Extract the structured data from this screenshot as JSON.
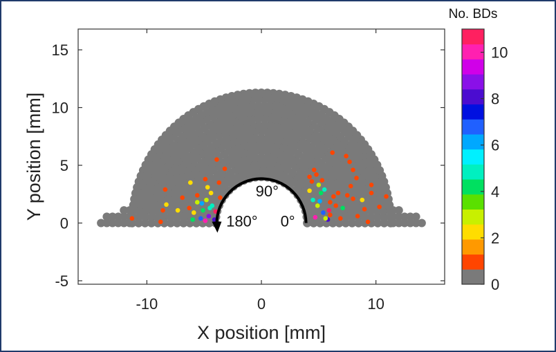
{
  "chart_data": {
    "type": "scatter",
    "title": "",
    "xlabel": "X position [mm]",
    "ylabel": "Y position [mm]",
    "xlim": [
      -16,
      16
    ],
    "ylim": [
      -5.3,
      16.8
    ],
    "xticks": [
      -10,
      0,
      10
    ],
    "xtick_labels": [
      "-10",
      "0",
      "10"
    ],
    "yticks": [
      -5,
      0,
      5,
      10,
      15
    ],
    "ytick_labels": [
      "-5",
      "0",
      "5",
      "10",
      "15"
    ],
    "grid": false,
    "geometry": {
      "shape": "half-annulus",
      "inner_radius_mm": 4.0,
      "outer_radius_mm": 11.5,
      "x_half_width_mm": 14,
      "base_color": "#7a7a7a"
    },
    "angle_annotation": {
      "labels": [
        "0°",
        "90°",
        "180°"
      ],
      "direction": "counter-clockwise"
    },
    "colorbar": {
      "title": "No. BDs",
      "min": 0,
      "max": 11,
      "ticks": [
        0,
        2,
        4,
        6,
        8,
        10
      ],
      "tick_labels": [
        "0",
        "2",
        "4",
        "6",
        "8",
        "10"
      ],
      "colors": [
        "#7a7a7a",
        "#ff4500",
        "#ff9900",
        "#ffdd00",
        "#c8f000",
        "#5ae000",
        "#00e060",
        "#00f0c0",
        "#00f0ff",
        "#00a8ff",
        "#2060ff",
        "#0010e0",
        "#4b0cd0",
        "#8a10e8",
        "#d000e8",
        "#ff20b0",
        "#ff2060"
      ]
    },
    "points": [
      {
        "x": -4.3,
        "y": 1.5,
        "v": 5
      },
      {
        "x": -4.8,
        "y": 2.0,
        "v": 3
      },
      {
        "x": -5.3,
        "y": 0.4,
        "v": 7
      },
      {
        "x": -4.6,
        "y": 0.6,
        "v": 9
      },
      {
        "x": -5.9,
        "y": 0.9,
        "v": 2
      },
      {
        "x": -6.3,
        "y": 1.3,
        "v": 1
      },
      {
        "x": -5.1,
        "y": 1.1,
        "v": 4
      },
      {
        "x": -4.4,
        "y": 2.6,
        "v": 2
      },
      {
        "x": -4.0,
        "y": 1.0,
        "v": 11
      },
      {
        "x": -5.6,
        "y": 2.4,
        "v": 1
      },
      {
        "x": -4.9,
        "y": 0.2,
        "v": 10
      },
      {
        "x": -6.0,
        "y": 0.3,
        "v": 4
      },
      {
        "x": -4.7,
        "y": 3.1,
        "v": 2
      },
      {
        "x": -3.7,
        "y": 3.5,
        "v": 1
      },
      {
        "x": -3.2,
        "y": 4.7,
        "v": 1
      },
      {
        "x": -3.9,
        "y": 5.5,
        "v": 1
      },
      {
        "x": -4.9,
        "y": 3.8,
        "v": 1
      },
      {
        "x": -6.9,
        "y": 2.2,
        "v": 1
      },
      {
        "x": -7.3,
        "y": 1.1,
        "v": 2
      },
      {
        "x": -8.6,
        "y": 1.1,
        "v": 1
      },
      {
        "x": -8.3,
        "y": 1.6,
        "v": 2
      },
      {
        "x": -11.3,
        "y": 0.4,
        "v": 1
      },
      {
        "x": -8.8,
        "y": 0.1,
        "v": 1
      },
      {
        "x": -8.4,
        "y": 2.9,
        "v": 1
      },
      {
        "x": -6.2,
        "y": 3.5,
        "v": 2
      },
      {
        "x": -3.6,
        "y": 2.2,
        "v": 1
      },
      {
        "x": -5.2,
        "y": 1.7,
        "v": 6
      },
      {
        "x": -4.5,
        "y": 1.3,
        "v": 5
      },
      {
        "x": -5.6,
        "y": 1.8,
        "v": 3
      },
      {
        "x": -4.1,
        "y": 0.3,
        "v": 8
      },
      {
        "x": 4.5,
        "y": 2.0,
        "v": 5
      },
      {
        "x": 4.9,
        "y": 1.5,
        "v": 3
      },
      {
        "x": 5.4,
        "y": 0.9,
        "v": 7
      },
      {
        "x": 5.2,
        "y": 2.6,
        "v": 4
      },
      {
        "x": 4.2,
        "y": 2.8,
        "v": 2
      },
      {
        "x": 5.8,
        "y": 0.3,
        "v": 8
      },
      {
        "x": 4.7,
        "y": 0.5,
        "v": 10
      },
      {
        "x": 6.0,
        "y": 1.8,
        "v": 1
      },
      {
        "x": 5.5,
        "y": 2.9,
        "v": 5
      },
      {
        "x": 4.4,
        "y": 3.6,
        "v": 1
      },
      {
        "x": 6.3,
        "y": 2.3,
        "v": 1
      },
      {
        "x": 5.0,
        "y": 3.3,
        "v": 3
      },
      {
        "x": 4.8,
        "y": 4.2,
        "v": 1
      },
      {
        "x": 5.9,
        "y": 1.1,
        "v": 11
      },
      {
        "x": 6.5,
        "y": 1.5,
        "v": 1
      },
      {
        "x": 6.7,
        "y": 2.6,
        "v": 1
      },
      {
        "x": 7.1,
        "y": 1.3,
        "v": 4
      },
      {
        "x": 7.5,
        "y": 2.4,
        "v": 1
      },
      {
        "x": 7.8,
        "y": 3.2,
        "v": 1
      },
      {
        "x": 8.0,
        "y": 2.1,
        "v": 1
      },
      {
        "x": 8.3,
        "y": 3.9,
        "v": 1
      },
      {
        "x": 8.0,
        "y": 4.6,
        "v": 1
      },
      {
        "x": 7.7,
        "y": 5.3,
        "v": 1
      },
      {
        "x": 8.4,
        "y": 0.6,
        "v": 1
      },
      {
        "x": 9.0,
        "y": 1.2,
        "v": 1
      },
      {
        "x": 9.3,
        "y": 0.1,
        "v": 1
      },
      {
        "x": 9.6,
        "y": 2.6,
        "v": 1
      },
      {
        "x": 10.3,
        "y": 1.4,
        "v": 1
      },
      {
        "x": 10.9,
        "y": 2.3,
        "v": 1
      },
      {
        "x": 9.6,
        "y": 3.3,
        "v": 1
      },
      {
        "x": 7.4,
        "y": 5.8,
        "v": 1
      },
      {
        "x": 6.2,
        "y": 6.1,
        "v": 1
      },
      {
        "x": 4.6,
        "y": 4.6,
        "v": 1
      },
      {
        "x": 5.3,
        "y": 3.7,
        "v": 1
      },
      {
        "x": 4.2,
        "y": 4.0,
        "v": 1
      },
      {
        "x": 6.0,
        "y": 0.7,
        "v": 1
      },
      {
        "x": 5.6,
        "y": 0.4,
        "v": 3
      },
      {
        "x": 6.9,
        "y": 0.4,
        "v": 1
      },
      {
        "x": 8.8,
        "y": 2.0,
        "v": 2
      },
      {
        "x": 5.1,
        "y": 1.9,
        "v": 6
      }
    ]
  }
}
